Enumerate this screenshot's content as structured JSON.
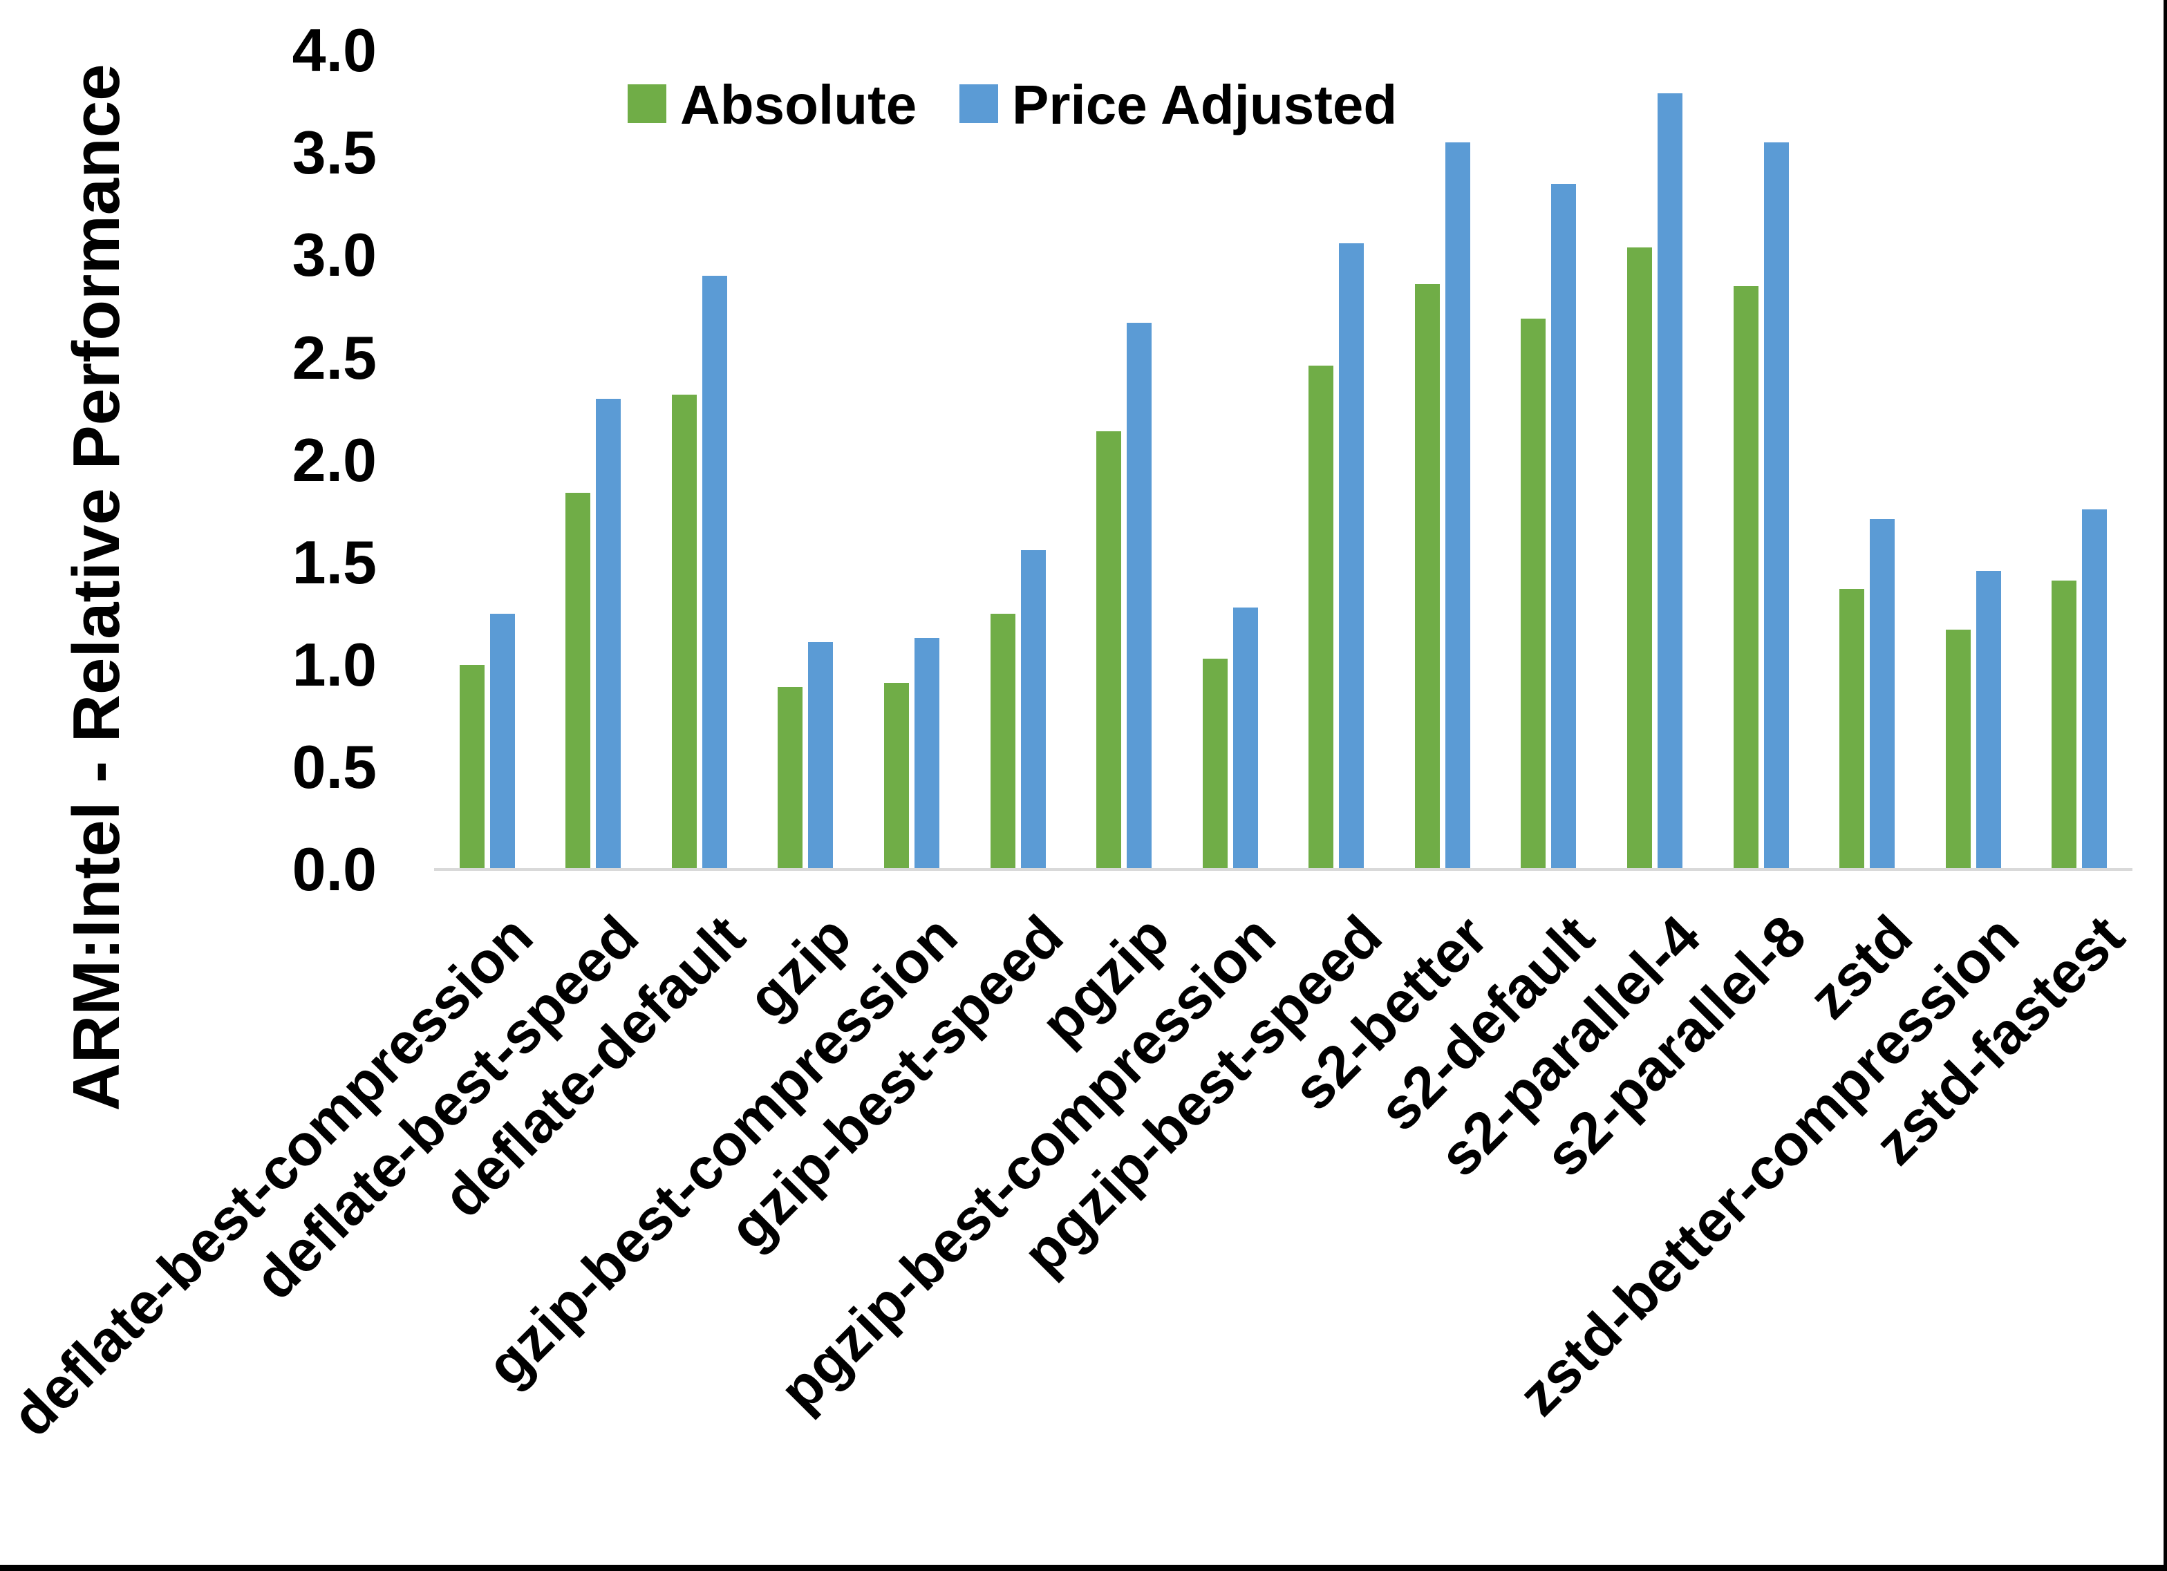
{
  "y_axis": {
    "tick_labels": [
      "0.0",
      "0.5",
      "1.0",
      "1.5",
      "2.0",
      "2.5",
      "3.0",
      "3.5",
      "4.0"
    ]
  },
  "chart_data": {
    "type": "bar",
    "title": "",
    "xlabel": "",
    "ylabel": "ARM:Intel - Relative Performance",
    "ylim": [
      0.0,
      4.0
    ],
    "ytick_step": 0.5,
    "grid": false,
    "legend_position": "top-center",
    "axis_line_color": "#D9D9D9",
    "background_color": "#FFFFFF",
    "border_color": "#000000",
    "categories": [
      "deflate-best-compression",
      "deflate-best-speed",
      "deflate-default",
      "gzip",
      "gzip-best-compression",
      "gzip-best-speed",
      "pgzip",
      "pgzip-best-compression",
      "pgzip-best-speed",
      "s2-better",
      "s2-default",
      "s2-parallel-4",
      "s2-parallel-8",
      "zstd",
      "zstd-better-compression",
      "zstd-fastest"
    ],
    "series": [
      {
        "name": "Absolute",
        "color": "#70AD47",
        "values": [
          1.0,
          1.84,
          2.32,
          0.89,
          0.91,
          1.25,
          2.14,
          1.03,
          2.46,
          2.86,
          2.69,
          3.04,
          2.85,
          1.37,
          1.17,
          1.41
        ]
      },
      {
        "name": "Price Adjusted",
        "color": "#5B9BD5",
        "values": [
          1.25,
          2.3,
          2.9,
          1.11,
          1.13,
          1.56,
          2.67,
          1.28,
          3.06,
          3.55,
          3.35,
          3.79,
          3.55,
          1.71,
          1.46,
          1.76
        ]
      }
    ]
  }
}
